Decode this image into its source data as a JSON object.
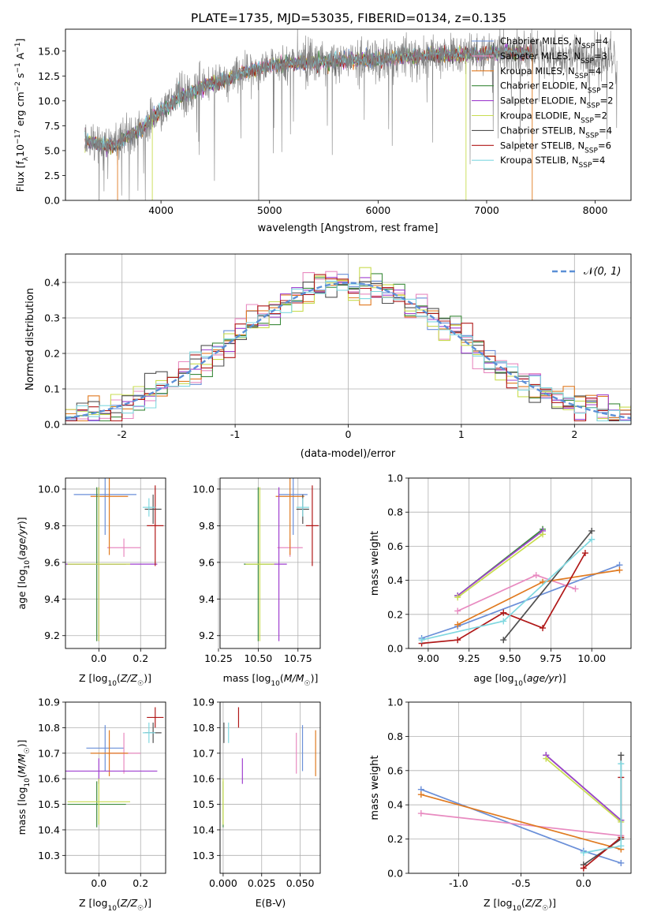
{
  "figure_title": "PLATE=1735, MJD=53035, FIBERID=0134, z=0.135",
  "colors": {
    "Chabrier MILES": "#6a8fd8",
    "Salpeter MILES": "#e88ac0",
    "Kroupa MILES": "#e07a20",
    "Chabrier ELODIE": "#3c8a3c",
    "Salpeter ELODIE": "#a040d0",
    "Kroupa ELODIE": "#c8dc50",
    "Chabrier STELIB": "#505050",
    "Salpeter STELIB": "#b01818",
    "Kroupa STELIB": "#80d8e0",
    "data_spectrum": "#808080",
    "normal": "#5b8fd6",
    "grid": "#b0b0b0"
  },
  "legend_entries": [
    {
      "name": "Chabrier MILES",
      "nssp": "4"
    },
    {
      "name": "Salpeter MILES",
      "nssp": "3"
    },
    {
      "name": "Kroupa MILES",
      "nssp": "4"
    },
    {
      "name": "Chabrier ELODIE",
      "nssp": "2"
    },
    {
      "name": "Salpeter ELODIE",
      "nssp": "2"
    },
    {
      "name": "Kroupa ELODIE",
      "nssp": "2"
    },
    {
      "name": "Chabrier STELIB",
      "nssp": "4"
    },
    {
      "name": "Salpeter STELIB",
      "nssp": "6"
    },
    {
      "name": "Kroupa STELIB",
      "nssp": "4"
    }
  ],
  "chart_data": [
    {
      "id": "spectrum",
      "type": "line",
      "xlabel": "wavelength [Angstrom, rest frame]",
      "ylabel": "Flux [f_λ10^-17 erg cm^-2 s^-1 A^-1]",
      "xlim": [
        3120,
        8330
      ],
      "ylim": [
        0,
        17.2
      ],
      "xticks": [
        4000,
        5000,
        6000,
        7000,
        8000
      ],
      "yticks": [
        0.0,
        2.5,
        5.0,
        7.5,
        10.0,
        12.5,
        15.0
      ],
      "legend_position": "upper right",
      "data_curve": {
        "x": [
          3300,
          3400,
          3500,
          3600,
          3700,
          3800,
          3900,
          4000,
          4200,
          4400,
          4600,
          4800,
          5000,
          5200,
          5400,
          5600,
          5800,
          6000,
          6200,
          6400,
          6600,
          6800,
          7000,
          7200,
          7400,
          7600,
          7800,
          8000,
          8200
        ],
        "y": [
          6.0,
          5.8,
          5.5,
          5.5,
          6.5,
          7.0,
          8.0,
          9.0,
          10.5,
          11.5,
          12.2,
          13.0,
          13.5,
          13.8,
          13.9,
          14.0,
          14.1,
          14.2,
          14.4,
          14.5,
          14.6,
          14.7,
          14.8,
          14.9,
          14.8,
          14.6,
          14.4,
          14.2,
          14.0
        ]
      },
      "model_range_AA": [
        3300,
        7420
      ]
    },
    {
      "id": "residuals",
      "type": "histogram",
      "xlabel": "(data-model)/error",
      "ylabel": "Normed distribution",
      "xlim": [
        -2.5,
        2.5
      ],
      "ylim": [
        0,
        0.48
      ],
      "xticks": [
        -2,
        -1,
        0,
        1,
        2
      ],
      "yticks": [
        0.0,
        0.1,
        0.2,
        0.3,
        0.4
      ],
      "legend_position": "upper right",
      "legend_label": "N(0,1)",
      "bin_width": 0.1
    },
    {
      "id": "age_vs_Z",
      "type": "errorbar",
      "xlabel": "Z [log10(Z/Z☉)]",
      "ylabel": "age  [log10(age/yr)]",
      "xlim": [
        -0.16,
        0.32
      ],
      "ylim": [
        9.13,
        10.06
      ],
      "xticks": [
        0.0,
        0.2
      ],
      "yticks": [
        9.2,
        9.4,
        9.6,
        9.8,
        10.0
      ],
      "points": [
        {
          "model": "Chabrier MILES",
          "x": 0.03,
          "y": 9.97,
          "xerr": 0.15,
          "yerr": 0.22
        },
        {
          "model": "Salpeter MILES",
          "x": 0.12,
          "y": 9.68,
          "xerr": 0.08,
          "yerr": 0.05
        },
        {
          "model": "Kroupa MILES",
          "x": 0.05,
          "y": 9.96,
          "xerr": 0.09,
          "yerr": 0.32
        },
        {
          "model": "Chabrier ELODIE",
          "x": -0.01,
          "y": 9.59,
          "xerr": 0.14,
          "yerr": 0.42
        },
        {
          "model": "Salpeter ELODIE",
          "x": 0.0,
          "y": 9.59,
          "xerr": 0.28,
          "yerr": 0.42
        },
        {
          "model": "Kroupa ELODIE",
          "x": 0.0,
          "y": 9.59,
          "xerr": 0.15,
          "yerr": 0.42
        },
        {
          "model": "Chabrier STELIB",
          "x": 0.26,
          "y": 9.89,
          "xerr": 0.04,
          "yerr": 0.08
        },
        {
          "model": "Salpeter STELIB",
          "x": 0.27,
          "y": 9.8,
          "xerr": 0.04,
          "yerr": 0.22
        },
        {
          "model": "Kroupa STELIB",
          "x": 0.24,
          "y": 9.9,
          "xerr": 0.03,
          "yerr": 0.05
        }
      ]
    },
    {
      "id": "age_vs_mass",
      "type": "errorbar",
      "xlabel": "mass [log10(M/M☉)]",
      "ylabel": "",
      "xlim": [
        10.26,
        10.89
      ],
      "ylim": [
        9.13,
        10.06
      ],
      "xticks": [
        10.25,
        10.5,
        10.75
      ],
      "yticks": [
        9.2,
        9.4,
        9.6,
        9.8,
        10.0
      ],
      "points": [
        {
          "model": "Chabrier MILES",
          "x": 10.72,
          "y": 9.97,
          "xerr": 0.09,
          "yerr": 0.22
        },
        {
          "model": "Salpeter MILES",
          "x": 10.7,
          "y": 9.68,
          "xerr": 0.08,
          "yerr": 0.05
        },
        {
          "model": "Kroupa MILES",
          "x": 10.7,
          "y": 9.96,
          "xerr": 0.09,
          "yerr": 0.32
        },
        {
          "model": "Chabrier ELODIE",
          "x": 10.5,
          "y": 9.59,
          "xerr": 0.09,
          "yerr": 0.42
        },
        {
          "model": "Salpeter ELODIE",
          "x": 10.63,
          "y": 9.59,
          "xerr": 0.05,
          "yerr": 0.42
        },
        {
          "model": "Kroupa ELODIE",
          "x": 10.51,
          "y": 9.59,
          "xerr": 0.09,
          "yerr": 0.42
        },
        {
          "model": "Chabrier STELIB",
          "x": 10.78,
          "y": 9.89,
          "xerr": 0.04,
          "yerr": 0.08
        },
        {
          "model": "Salpeter STELIB",
          "x": 10.84,
          "y": 9.8,
          "xerr": 0.04,
          "yerr": 0.22
        },
        {
          "model": "Kroupa STELIB",
          "x": 10.78,
          "y": 9.9,
          "xerr": 0.04,
          "yerr": 0.05
        }
      ]
    },
    {
      "id": "weight_vs_age",
      "type": "line",
      "xlabel": "age  [log10(age/yr)]",
      "ylabel": "mass weight",
      "xlim": [
        8.88,
        10.24
      ],
      "ylim": [
        0,
        1.0
      ],
      "xticks": [
        9.0,
        9.25,
        9.5,
        9.75,
        10.0
      ],
      "yticks": [
        0.0,
        0.2,
        0.4,
        0.6,
        0.8,
        1.0
      ],
      "series": [
        {
          "model": "Chabrier MILES",
          "x": [
            8.96,
            9.18,
            10.17
          ],
          "y": [
            0.06,
            0.13,
            0.49
          ]
        },
        {
          "model": "Salpeter MILES",
          "x": [
            9.18,
            9.66,
            9.9
          ],
          "y": [
            0.22,
            0.43,
            0.35
          ]
        },
        {
          "model": "Kroupa MILES",
          "x": [
            9.18,
            9.7,
            10.17
          ],
          "y": [
            0.14,
            0.39,
            0.46
          ]
        },
        {
          "model": "Chabrier ELODIE",
          "x": [
            9.18,
            9.7
          ],
          "y": [
            0.31,
            0.7
          ]
        },
        {
          "model": "Salpeter ELODIE",
          "x": [
            9.18,
            9.7
          ],
          "y": [
            0.31,
            0.69
          ]
        },
        {
          "model": "Kroupa ELODIE",
          "x": [
            9.18,
            9.7
          ],
          "y": [
            0.3,
            0.67
          ]
        },
        {
          "model": "Chabrier STELIB",
          "x": [
            9.46,
            10.0
          ],
          "y": [
            0.05,
            0.69
          ]
        },
        {
          "model": "Salpeter STELIB",
          "x": [
            8.96,
            9.18,
            9.46,
            9.7,
            9.96
          ],
          "y": [
            0.03,
            0.05,
            0.21,
            0.12,
            0.56
          ]
        },
        {
          "model": "Kroupa STELIB",
          "x": [
            8.96,
            9.46,
            10.0
          ],
          "y": [
            0.05,
            0.16,
            0.64
          ]
        }
      ]
    },
    {
      "id": "mass_vs_Z",
      "type": "errorbar",
      "xlabel": "Z [log10(Z/Z☉)]",
      "ylabel": "mass [log10(M/M☉)]",
      "xlim": [
        -0.16,
        0.32
      ],
      "ylim": [
        10.23,
        10.9
      ],
      "xticks": [
        0.0,
        0.2
      ],
      "yticks": [
        10.3,
        10.4,
        10.5,
        10.6,
        10.7,
        10.8,
        10.9
      ],
      "points": [
        {
          "model": "Chabrier MILES",
          "x": 0.03,
          "y": 10.72,
          "xerr": 0.09,
          "yerr": 0.09
        },
        {
          "model": "Salpeter MILES",
          "x": 0.12,
          "y": 10.7,
          "xerr": 0.08,
          "yerr": 0.08
        },
        {
          "model": "Kroupa MILES",
          "x": 0.05,
          "y": 10.7,
          "xerr": 0.09,
          "yerr": 0.09
        },
        {
          "model": "Chabrier ELODIE",
          "x": -0.01,
          "y": 10.5,
          "xerr": 0.14,
          "yerr": 0.09
        },
        {
          "model": "Salpeter ELODIE",
          "x": 0.0,
          "y": 10.63,
          "xerr": 0.28,
          "yerr": 0.05
        },
        {
          "model": "Kroupa ELODIE",
          "x": 0.0,
          "y": 10.51,
          "xerr": 0.15,
          "yerr": 0.09
        },
        {
          "model": "Chabrier STELIB",
          "x": 0.26,
          "y": 10.78,
          "xerr": 0.04,
          "yerr": 0.04
        },
        {
          "model": "Salpeter STELIB",
          "x": 0.27,
          "y": 10.84,
          "xerr": 0.04,
          "yerr": 0.04
        },
        {
          "model": "Kroupa STELIB",
          "x": 0.24,
          "y": 10.78,
          "xerr": 0.03,
          "yerr": 0.04
        }
      ]
    },
    {
      "id": "mass_vs_ebv",
      "type": "errorbar",
      "xlabel": "E(B-V)",
      "ylabel": "",
      "xlim": [
        -0.002,
        0.063
      ],
      "ylim": [
        10.23,
        10.9
      ],
      "xticks": [
        0.0,
        0.025,
        0.05
      ],
      "yticks": [
        10.3,
        10.4,
        10.5,
        10.6,
        10.7,
        10.8,
        10.9
      ],
      "points": [
        {
          "model": "Chabrier MILES",
          "x": 0.0515,
          "y": 10.72,
          "xerr": 0,
          "yerr": 0.09
        },
        {
          "model": "Salpeter MILES",
          "x": 0.0475,
          "y": 10.7,
          "xerr": 0,
          "yerr": 0.08
        },
        {
          "model": "Kroupa MILES",
          "x": 0.06,
          "y": 10.7,
          "xerr": 0,
          "yerr": 0.09
        },
        {
          "model": "Chabrier ELODIE",
          "x": 0.0,
          "y": 10.5,
          "xerr": 0,
          "yerr": 0.09
        },
        {
          "model": "Salpeter ELODIE",
          "x": 0.0125,
          "y": 10.63,
          "xerr": 0,
          "yerr": 0.05
        },
        {
          "model": "Kroupa ELODIE",
          "x": 0.0,
          "y": 10.51,
          "xerr": 0,
          "yerr": 0.09
        },
        {
          "model": "Chabrier STELIB",
          "x": 0.0005,
          "y": 10.78,
          "xerr": 0,
          "yerr": 0.04
        },
        {
          "model": "Salpeter STELIB",
          "x": 0.01,
          "y": 10.84,
          "xerr": 0,
          "yerr": 0.04
        },
        {
          "model": "Kroupa STELIB",
          "x": 0.0035,
          "y": 10.78,
          "xerr": 0,
          "yerr": 0.04
        }
      ]
    },
    {
      "id": "weight_vs_Z",
      "type": "line",
      "xlabel": "Z [log10(Z/Z☉)]",
      "ylabel": "mass weight",
      "xlim": [
        -1.4,
        0.38
      ],
      "ylim": [
        0,
        1.0
      ],
      "xticks": [
        -1.0,
        -0.5,
        0.0
      ],
      "yticks": [
        0.0,
        0.2,
        0.4,
        0.6,
        0.8,
        1.0
      ],
      "series": [
        {
          "model": "Chabrier MILES",
          "x": [
            -1.3,
            0.0,
            0.3
          ],
          "y": [
            0.49,
            0.13,
            0.06
          ]
        },
        {
          "model": "Salpeter MILES",
          "x": [
            -1.3,
            0.3
          ],
          "y": [
            0.35,
            0.22
          ]
        },
        {
          "model": "Kroupa MILES",
          "x": [
            -1.3,
            0.3
          ],
          "y": [
            0.46,
            0.14
          ]
        },
        {
          "model": "Chabrier ELODIE",
          "x": [
            -0.3,
            0.3
          ],
          "y": [
            0.69,
            0.31
          ]
        },
        {
          "model": "Salpeter ELODIE",
          "x": [
            -0.3,
            0.3
          ],
          "y": [
            0.69,
            0.31
          ]
        },
        {
          "model": "Kroupa ELODIE",
          "x": [
            -0.3,
            0.3
          ],
          "y": [
            0.67,
            0.3
          ]
        },
        {
          "model": "Chabrier STELIB",
          "x": [
            0.0,
            0.3,
            0.3
          ],
          "y": [
            0.05,
            0.2,
            0.69
          ]
        },
        {
          "model": "Salpeter STELIB",
          "x": [
            0.0,
            0.3,
            0.3
          ],
          "y": [
            0.03,
            0.21,
            0.56
          ]
        },
        {
          "model": "Kroupa STELIB",
          "x": [
            0.0,
            0.3,
            0.3
          ],
          "y": [
            0.12,
            0.16,
            0.64
          ]
        }
      ]
    }
  ]
}
